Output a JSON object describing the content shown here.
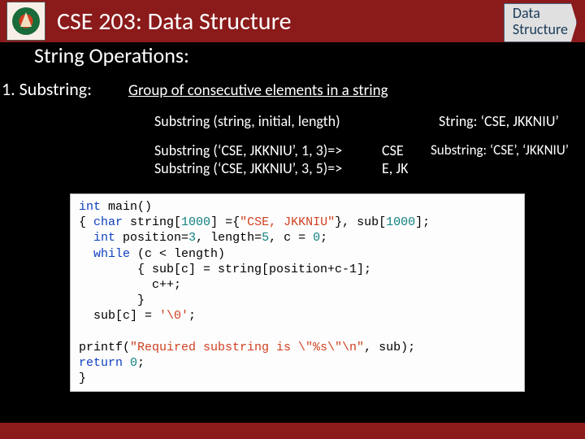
{
  "header": {
    "course_title": "CSE 203: Data Structure",
    "badge_line1": "Data",
    "badge_line2": "Structure"
  },
  "subtitle": "String Operations:",
  "section": {
    "label": "1. Substring:",
    "definition": "Group of consecutive elements in a string",
    "syntax": "Substring (string, initial, length)",
    "ex1": "Substring (‘CSE, JKKNIU’, 1, 3)=>",
    "ex2": "Substring (‘CSE, JKKNIU’, 3, 5)=>",
    "res1": "CSE",
    "res2": "E, JK",
    "note1": "String: ‘CSE, JKKNIU’",
    "note2": "Substring: ‘CSE’, ‘JKKNIU’"
  },
  "code": {
    "l1a": "int",
    "l1b": " main()",
    "l2a": "{ ",
    "l2b": "char",
    "l2c": " string[",
    "l2d": "1000",
    "l2e": "] ={",
    "l2f": "\"CSE, JKKNIU\"",
    "l2g": "}, sub[",
    "l2h": "1000",
    "l2i": "];",
    "l3a": "  ",
    "l3b": "int",
    "l3c": " position=",
    "l3d": "3",
    "l3e": ", length=",
    "l3f": "5",
    "l3g": ", c = ",
    "l3h": "0",
    "l3i": ";",
    "l4a": "  ",
    "l4b": "while",
    "l4c": " (c < length)",
    "l5": "        { sub[c] = string[position+c-1];",
    "l6": "          c++;",
    "l7": "        }",
    "l8a": "  sub[c] = ",
    "l8b": "'\\0'",
    "l8c": ";",
    "blank": "",
    "l9a": "printf(",
    "l9b": "\"Required substring is \\\"%s\\\"\\n\"",
    "l9c": ", sub);",
    "l10a": "return",
    "l10b": " ",
    "l10c": "0",
    "l10d": ";",
    "l11": "}"
  },
  "colors": {
    "header_bg": "#8b1a1a",
    "body_bg": "#000000",
    "code_bg": "#fdfdfd",
    "keyword_blue": "#1040c0",
    "keyword_teal": "#108080",
    "string_color": "#d04020"
  }
}
